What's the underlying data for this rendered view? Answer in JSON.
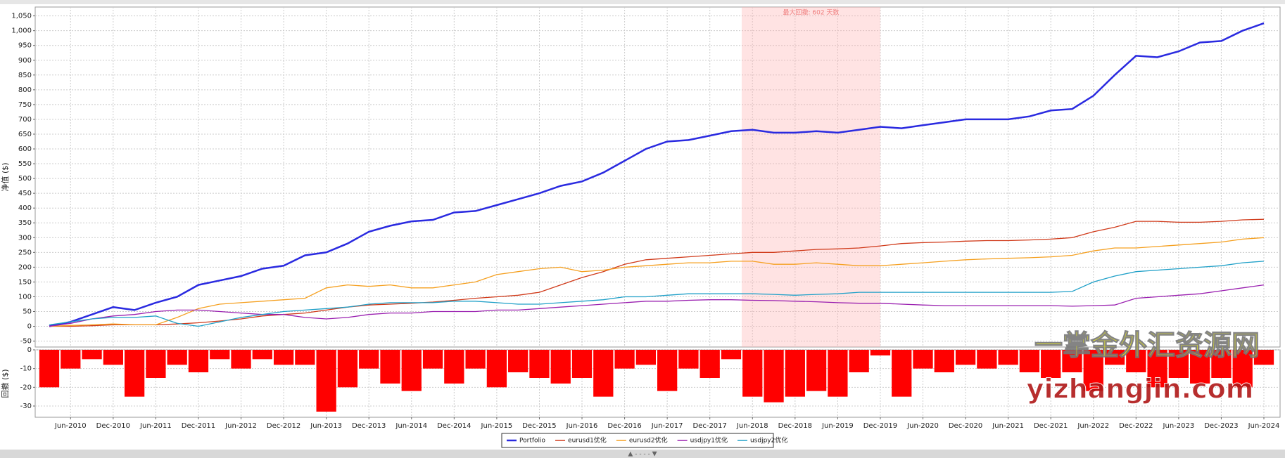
{
  "chart_data": [
    {
      "type": "line",
      "ylabel": "净值 ($)",
      "annotation": "最大回撤: 602 天数",
      "max_drawdown_span": {
        "start": "Mar-2018",
        "end": "Dec-2019"
      },
      "x": [
        "Mar-2010",
        "Jun-2010",
        "Sep-2010",
        "Dec-2010",
        "Mar-2011",
        "Jun-2011",
        "Sep-2011",
        "Dec-2011",
        "Mar-2012",
        "Jun-2012",
        "Sep-2012",
        "Dec-2012",
        "Mar-2013",
        "Jun-2013",
        "Sep-2013",
        "Dec-2013",
        "Mar-2014",
        "Jun-2014",
        "Sep-2014",
        "Dec-2014",
        "Mar-2015",
        "Jun-2015",
        "Sep-2015",
        "Dec-2015",
        "Mar-2016",
        "Jun-2016",
        "Sep-2016",
        "Dec-2016",
        "Mar-2017",
        "Jun-2017",
        "Sep-2017",
        "Dec-2017",
        "Mar-2018",
        "Jun-2018",
        "Sep-2018",
        "Dec-2018",
        "Mar-2019",
        "Jun-2019",
        "Sep-2019",
        "Dec-2019",
        "Mar-2020",
        "Jun-2020",
        "Sep-2020",
        "Dec-2020",
        "Mar-2021",
        "Jun-2021",
        "Sep-2021",
        "Dec-2021",
        "Mar-2022",
        "Jun-2022",
        "Sep-2022",
        "Dec-2022",
        "Mar-2023",
        "Jun-2023",
        "Sep-2023",
        "Dec-2023",
        "Mar-2024",
        "Jun-2024"
      ],
      "series": [
        {
          "name": "Portfolio",
          "color": "#2a2ae0",
          "values": [
            0,
            15,
            40,
            65,
            55,
            80,
            100,
            140,
            155,
            170,
            195,
            205,
            240,
            250,
            280,
            320,
            340,
            355,
            360,
            385,
            390,
            410,
            430,
            450,
            475,
            490,
            520,
            560,
            600,
            625,
            630,
            645,
            660,
            665,
            655,
            655,
            660,
            655,
            665,
            675,
            670,
            680,
            690,
            700,
            700,
            700,
            710,
            730,
            735,
            780,
            850,
            915,
            910,
            930,
            960,
            965,
            1000,
            1025
          ]
        },
        {
          "name": "eurusd1优化",
          "color": "#d03a1a",
          "values": [
            0,
            0,
            2,
            5,
            5,
            5,
            8,
            12,
            18,
            25,
            35,
            40,
            45,
            55,
            65,
            72,
            75,
            78,
            82,
            88,
            95,
            100,
            105,
            115,
            140,
            165,
            185,
            210,
            225,
            230,
            235,
            240,
            245,
            250,
            250,
            255,
            260,
            262,
            265,
            272,
            280,
            283,
            285,
            288,
            290,
            290,
            292,
            295,
            300,
            320,
            335,
            355,
            355,
            352,
            352,
            355,
            360,
            362
          ]
        },
        {
          "name": "eurusd2优化",
          "color": "#f5a020",
          "values": [
            0,
            3,
            5,
            8,
            5,
            5,
            30,
            60,
            75,
            80,
            85,
            90,
            95,
            130,
            140,
            135,
            140,
            130,
            130,
            140,
            150,
            175,
            185,
            195,
            200,
            185,
            190,
            200,
            205,
            210,
            215,
            215,
            220,
            220,
            210,
            210,
            215,
            210,
            205,
            205,
            210,
            215,
            220,
            225,
            228,
            230,
            232,
            235,
            240,
            255,
            265,
            265,
            270,
            275,
            280,
            285,
            295,
            300
          ]
        },
        {
          "name": "usdjpy1优化",
          "color": "#9a20b0",
          "values": [
            0,
            10,
            25,
            35,
            40,
            50,
            55,
            55,
            50,
            45,
            40,
            40,
            30,
            25,
            30,
            40,
            45,
            45,
            50,
            50,
            50,
            55,
            55,
            60,
            65,
            70,
            75,
            80,
            85,
            85,
            88,
            90,
            90,
            88,
            87,
            85,
            83,
            80,
            78,
            78,
            75,
            72,
            70,
            70,
            70,
            70,
            70,
            70,
            68,
            70,
            72,
            95,
            100,
            105,
            110,
            120,
            130,
            140
          ]
        },
        {
          "name": "usdjpy2优化",
          "color": "#20a0c8",
          "values": [
            5,
            15,
            25,
            30,
            30,
            35,
            10,
            0,
            15,
            30,
            40,
            50,
            55,
            60,
            65,
            75,
            80,
            80,
            80,
            85,
            85,
            80,
            75,
            75,
            80,
            85,
            90,
            100,
            100,
            105,
            110,
            110,
            110,
            110,
            108,
            105,
            108,
            110,
            115,
            115,
            115,
            115,
            115,
            115,
            115,
            115,
            115,
            115,
            118,
            150,
            170,
            185,
            190,
            195,
            200,
            205,
            215,
            220
          ]
        }
      ],
      "ylim": [
        -70,
        1080
      ],
      "yticks": [
        -50,
        0,
        50,
        100,
        150,
        200,
        250,
        300,
        350,
        400,
        450,
        500,
        550,
        600,
        650,
        700,
        750,
        800,
        850,
        900,
        950,
        {
          "value": 1000,
          "label": "1,000"
        },
        {
          "value": 1050,
          "label": "1,050"
        }
      ],
      "grid": true
    },
    {
      "type": "bar",
      "ylabel": "回撤 ($)",
      "color": "#ff0000",
      "x": [
        "Mar-2010",
        "Jun-2010",
        "Sep-2010",
        "Dec-2010",
        "Mar-2011",
        "Jun-2011",
        "Sep-2011",
        "Dec-2011",
        "Mar-2012",
        "Jun-2012",
        "Sep-2012",
        "Dec-2012",
        "Mar-2013",
        "Jun-2013",
        "Sep-2013",
        "Dec-2013",
        "Mar-2014",
        "Jun-2014",
        "Sep-2014",
        "Dec-2014",
        "Mar-2015",
        "Jun-2015",
        "Sep-2015",
        "Dec-2015",
        "Mar-2016",
        "Jun-2016",
        "Sep-2016",
        "Dec-2016",
        "Mar-2017",
        "Jun-2017",
        "Sep-2017",
        "Dec-2017",
        "Mar-2018",
        "Jun-2018",
        "Sep-2018",
        "Dec-2018",
        "Mar-2019",
        "Jun-2019",
        "Sep-2019",
        "Dec-2019",
        "Mar-2020",
        "Jun-2020",
        "Sep-2020",
        "Dec-2020",
        "Mar-2021",
        "Jun-2021",
        "Sep-2021",
        "Dec-2021",
        "Mar-2022",
        "Jun-2022",
        "Sep-2022",
        "Dec-2022",
        "Mar-2023",
        "Jun-2023",
        "Sep-2023",
        "Dec-2023",
        "Mar-2024",
        "Jun-2024"
      ],
      "values": [
        -20,
        -10,
        -5,
        -8,
        -25,
        -15,
        -8,
        -12,
        -5,
        -10,
        -5,
        -8,
        -8,
        -33,
        -20,
        -10,
        -18,
        -22,
        -10,
        -18,
        -10,
        -20,
        -12,
        -15,
        -18,
        -15,
        -25,
        -10,
        -8,
        -22,
        -10,
        -15,
        -5,
        -25,
        -28,
        -25,
        -22,
        -25,
        -12,
        -3,
        -25,
        -10,
        -12,
        -8,
        -10,
        -8,
        -12,
        -15,
        -12,
        -22,
        -8,
        -12,
        -20,
        -15,
        -18,
        -15,
        -20,
        -8
      ],
      "ylim": [
        -36,
        0
      ],
      "yticks": [
        0,
        -10,
        -20,
        -30
      ],
      "grid": true
    }
  ],
  "watermark": {
    "cn": "一掌金外汇资源网",
    "url": "yizhangjin.com"
  }
}
